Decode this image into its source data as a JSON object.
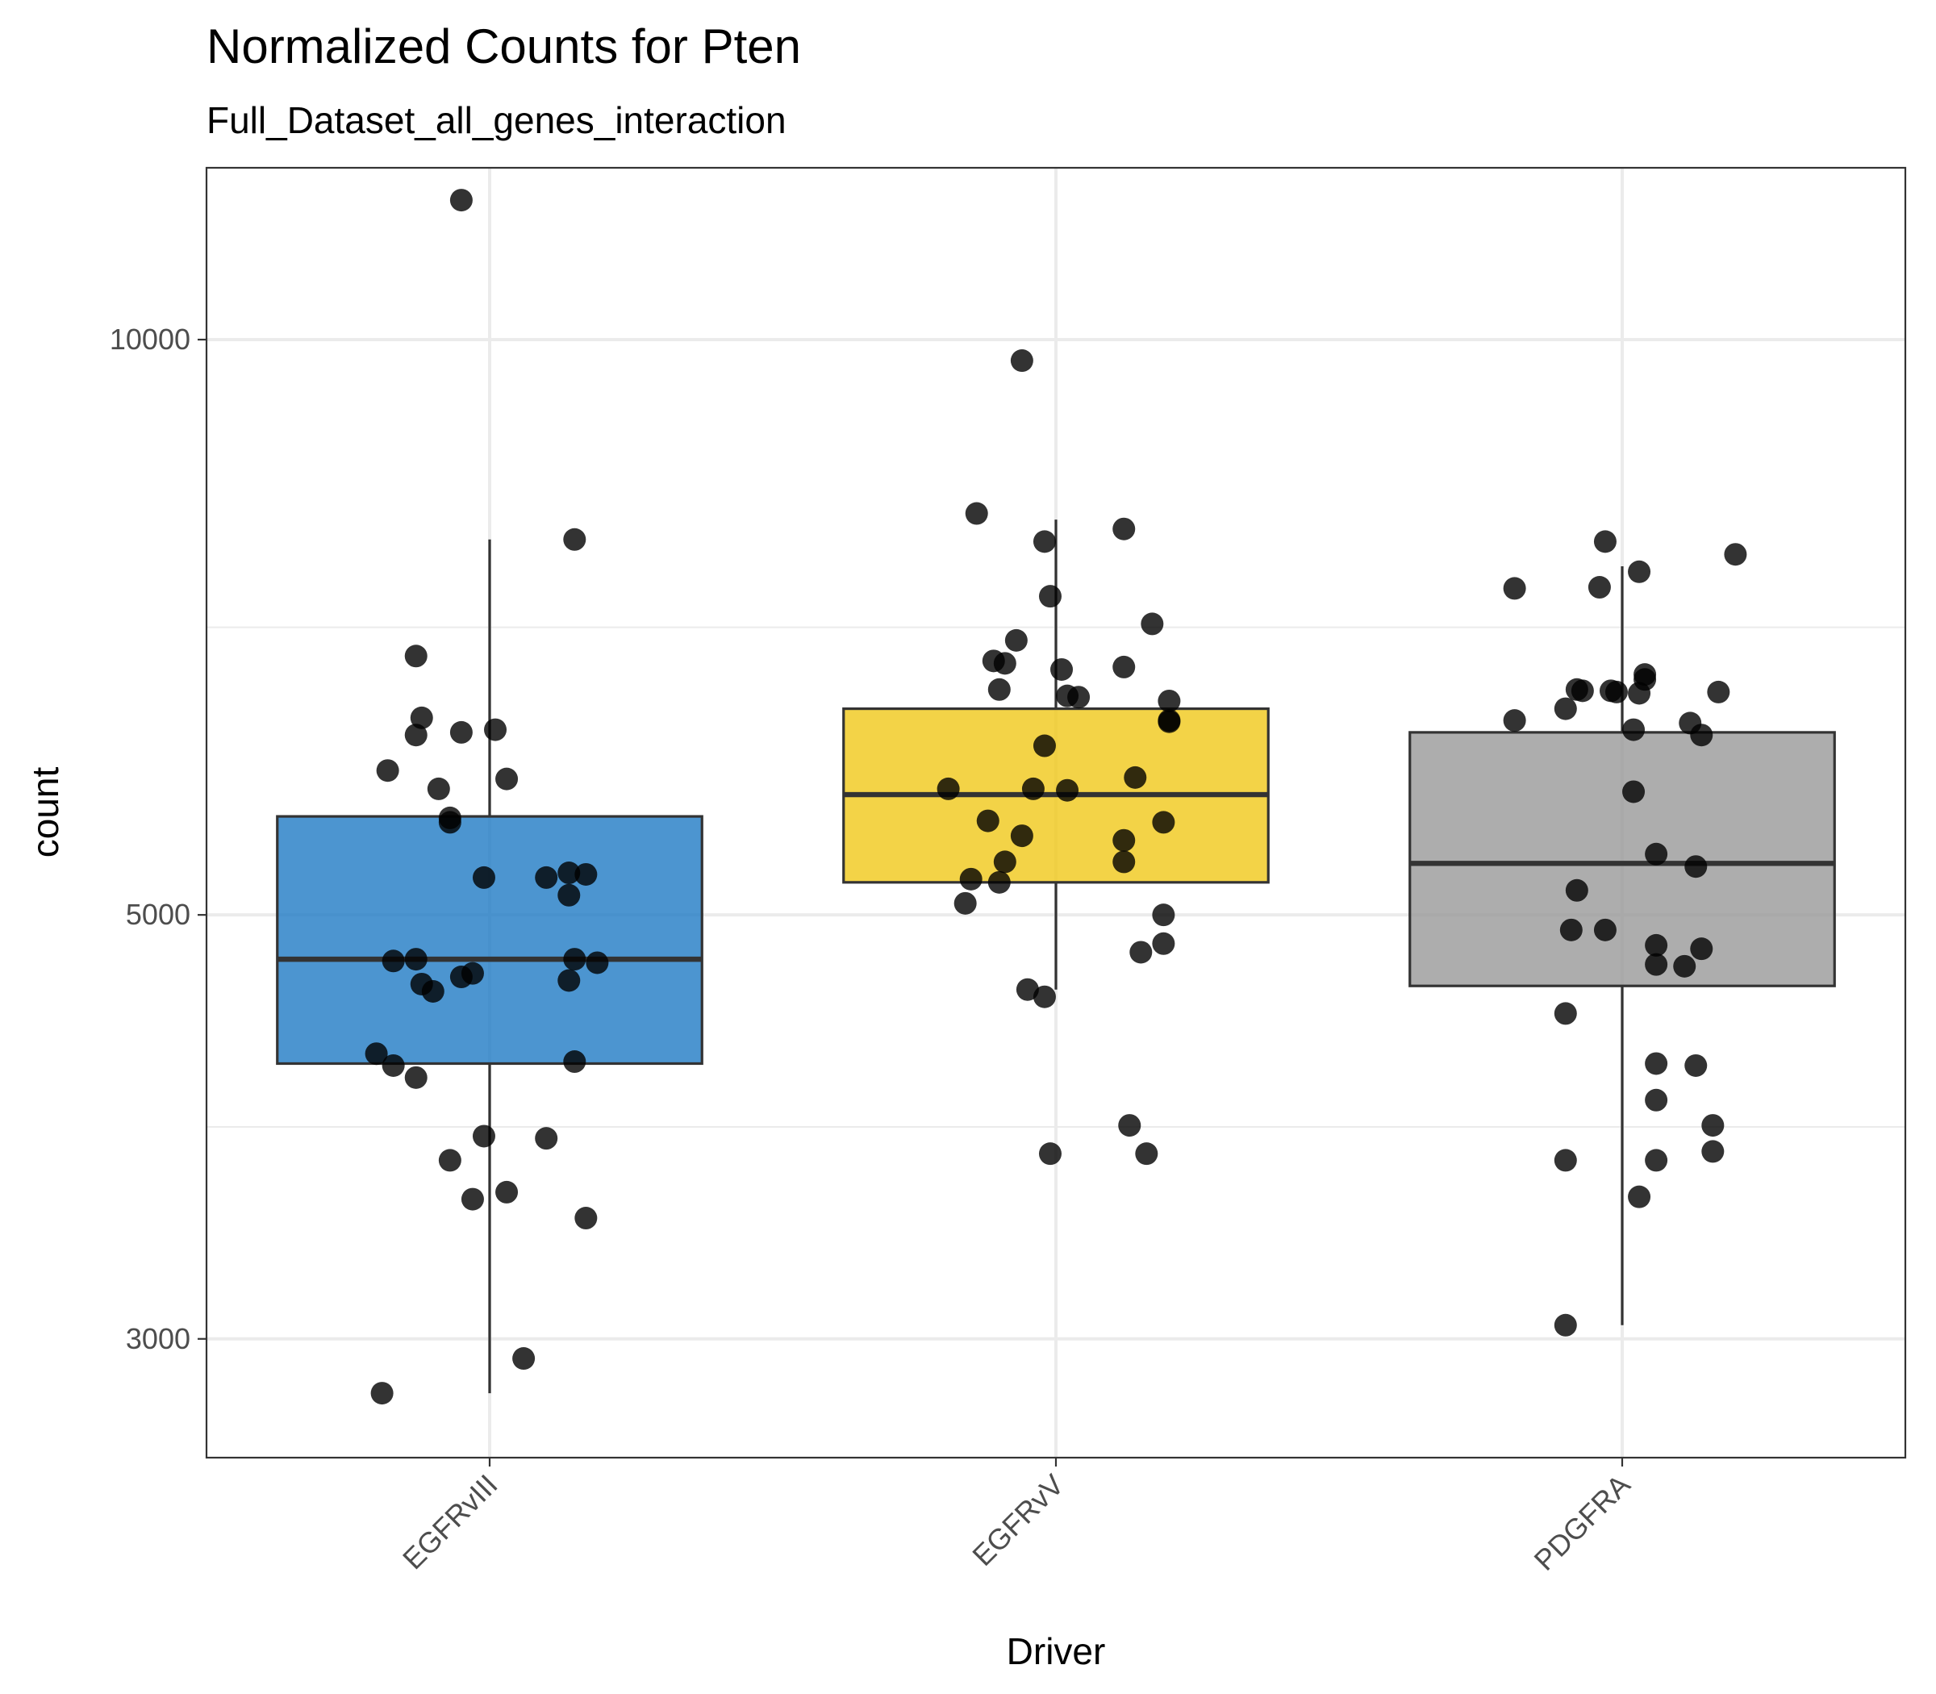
{
  "chart_data": {
    "type": "box",
    "title": "Normalized Counts for Pten",
    "subtitle": "Full_Dataset_all_genes_interaction",
    "xlabel": "Driver",
    "ylabel": "count",
    "y_scale": "log10",
    "ylim": [
      2600,
      12300
    ],
    "y_ticks": [
      3000,
      5000,
      10000
    ],
    "y_tick_labels": [
      "3000",
      "5000",
      "10000"
    ],
    "y_minor_ticks": [
      3873,
      7071
    ],
    "categories": [
      "EGFRvIII",
      "EGFRvV",
      "PDGFRA"
    ],
    "colors": {
      "EGFRvIII": "#1f7ac4",
      "EGFRvV": "#f0c819",
      "PDGFRA": "#999999",
      "points": "#000000",
      "box_outline": "#333333",
      "grid": "#ebebeb"
    },
    "series": [
      {
        "category": "EGFRvIII",
        "whisker_low": 2810,
        "q1": 4180,
        "median": 4740,
        "q3": 5630,
        "whisker_high": 7860,
        "points": [
          [
            -0.05,
            11830
          ],
          [
            0.15,
            7860
          ],
          [
            -0.13,
            6830
          ],
          [
            -0.12,
            6340
          ],
          [
            -0.13,
            6210
          ],
          [
            -0.05,
            6230
          ],
          [
            0.01,
            6250
          ],
          [
            -0.18,
            5950
          ],
          [
            0.03,
            5890
          ],
          [
            -0.09,
            5820
          ],
          [
            -0.07,
            5620
          ],
          [
            -0.07,
            5590
          ],
          [
            -0.01,
            5230
          ],
          [
            0.1,
            5230
          ],
          [
            0.14,
            5260
          ],
          [
            0.17,
            5250
          ],
          [
            0.14,
            5120
          ],
          [
            -0.17,
            4730
          ],
          [
            -0.13,
            4740
          ],
          [
            -0.12,
            4600
          ],
          [
            -0.1,
            4560
          ],
          [
            -0.05,
            4640
          ],
          [
            -0.03,
            4660
          ],
          [
            0.15,
            4740
          ],
          [
            0.19,
            4720
          ],
          [
            0.14,
            4620
          ],
          [
            -0.2,
            4230
          ],
          [
            -0.17,
            4170
          ],
          [
            -0.13,
            4110
          ],
          [
            0.15,
            4190
          ],
          [
            -0.01,
            3830
          ],
          [
            0.1,
            3820
          ],
          [
            -0.07,
            3720
          ],
          [
            -0.03,
            3550
          ],
          [
            0.03,
            3580
          ],
          [
            0.17,
            3470
          ],
          [
            0.06,
            2930
          ],
          [
            -0.19,
            2810
          ]
        ]
      },
      {
        "category": "EGFRvV",
        "whisker_low": 4570,
        "q1": 5200,
        "median": 5780,
        "q3": 6410,
        "whisker_high": 8050,
        "points": [
          [
            -0.06,
            9750
          ],
          [
            -0.14,
            8110
          ],
          [
            0.12,
            7960
          ],
          [
            -0.02,
            7840
          ],
          [
            -0.01,
            7340
          ],
          [
            0.17,
            7100
          ],
          [
            -0.07,
            6960
          ],
          [
            -0.09,
            6770
          ],
          [
            -0.11,
            6790
          ],
          [
            0.01,
            6720
          ],
          [
            0.12,
            6740
          ],
          [
            -0.1,
            6560
          ],
          [
            0.04,
            6500
          ],
          [
            0.02,
            6510
          ],
          [
            0.2,
            6470
          ],
          [
            0.2,
            6320
          ],
          [
            0.2,
            6310
          ],
          [
            -0.02,
            6130
          ],
          [
            0.14,
            5900
          ],
          [
            -0.19,
            5820
          ],
          [
            -0.04,
            5820
          ],
          [
            0.02,
            5810
          ],
          [
            -0.12,
            5600
          ],
          [
            0.19,
            5590
          ],
          [
            -0.06,
            5500
          ],
          [
            0.12,
            5470
          ],
          [
            -0.09,
            5330
          ],
          [
            0.12,
            5330
          ],
          [
            -0.15,
            5220
          ],
          [
            -0.1,
            5200
          ],
          [
            -0.16,
            5070
          ],
          [
            0.19,
            5000
          ],
          [
            0.19,
            4830
          ],
          [
            0.15,
            4780
          ],
          [
            -0.05,
            4570
          ],
          [
            -0.02,
            4530
          ],
          [
            0.13,
            3880
          ],
          [
            -0.01,
            3750
          ],
          [
            0.16,
            3750
          ]
        ]
      },
      {
        "category": "PDGFRA",
        "whisker_low": 3050,
        "q1": 4590,
        "median": 5320,
        "q3": 6230,
        "whisker_high": 7610,
        "points": [
          [
            -0.03,
            7840
          ],
          [
            0.2,
            7720
          ],
          [
            0.03,
            7560
          ],
          [
            -0.19,
            7410
          ],
          [
            -0.04,
            7420
          ],
          [
            0.04,
            6680
          ],
          [
            0.04,
            6640
          ],
          [
            -0.08,
            6560
          ],
          [
            -0.07,
            6550
          ],
          [
            -0.02,
            6550
          ],
          [
            -0.01,
            6540
          ],
          [
            0.03,
            6530
          ],
          [
            0.17,
            6540
          ],
          [
            -0.1,
            6410
          ],
          [
            -0.19,
            6320
          ],
          [
            0.12,
            6300
          ],
          [
            0.02,
            6250
          ],
          [
            0.14,
            6210
          ],
          [
            0.02,
            5800
          ],
          [
            0.06,
            5380
          ],
          [
            0.13,
            5300
          ],
          [
            -0.08,
            5150
          ],
          [
            -0.09,
            4910
          ],
          [
            -0.03,
            4910
          ],
          [
            0.06,
            4820
          ],
          [
            0.14,
            4800
          ],
          [
            0.06,
            4710
          ],
          [
            0.11,
            4700
          ],
          [
            -0.1,
            4440
          ],
          [
            0.06,
            4180
          ],
          [
            0.13,
            4170
          ],
          [
            0.06,
            4000
          ],
          [
            0.16,
            3880
          ],
          [
            0.16,
            3760
          ],
          [
            0.06,
            3720
          ],
          [
            -0.1,
            3720
          ],
          [
            0.03,
            3560
          ],
          [
            -0.1,
            3050
          ]
        ]
      }
    ],
    "grid": true,
    "legend": "none"
  }
}
